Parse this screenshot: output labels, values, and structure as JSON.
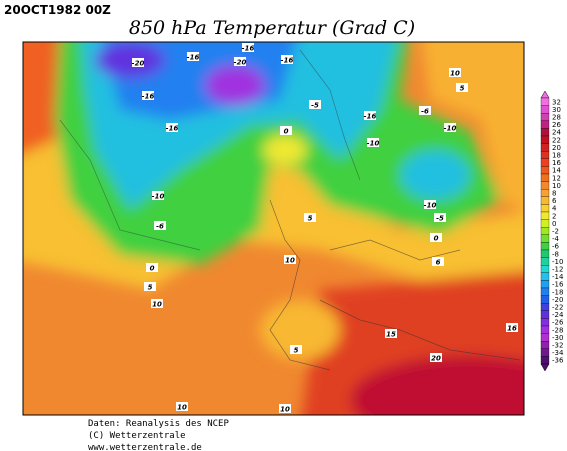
{
  "header": {
    "timestamp": "20OCT1982 00Z",
    "title": "850 hPa Temperatur (Grad C)"
  },
  "colorbar": {
    "labels": [
      32,
      30,
      28,
      26,
      24,
      22,
      20,
      18,
      16,
      14,
      12,
      10,
      8,
      6,
      4,
      2,
      0,
      -2,
      -4,
      -6,
      -8,
      -10,
      -12,
      -14,
      -16,
      -18,
      -20,
      -22,
      -24,
      -26,
      -28,
      -30,
      -32,
      -34,
      -36
    ],
    "colors": [
      "#f070e0",
      "#e050d0",
      "#d040b0",
      "#c02080",
      "#b01040",
      "#c01020",
      "#d02020",
      "#e03020",
      "#f04020",
      "#f05820",
      "#f07020",
      "#f08830",
      "#f8a030",
      "#f8b830",
      "#f8d030",
      "#f0e830",
      "#d0f020",
      "#a0e820",
      "#70e030",
      "#40d040",
      "#20c870",
      "#20d0a0",
      "#20d8d0",
      "#20c0f0",
      "#20a0f0",
      "#2080f0",
      "#2060e8",
      "#4040e0",
      "#6030e0",
      "#8030e0",
      "#a030e0",
      "#b030d0",
      "#9020b0",
      "#701890",
      "#501070"
    ]
  },
  "contour_labels": [
    -20,
    -16,
    -16,
    -20,
    -16,
    -16,
    -5,
    -16,
    -16,
    -6,
    -10,
    -10,
    -10,
    -6,
    0,
    10,
    5,
    -10,
    -5,
    0,
    5,
    10,
    6,
    0,
    5,
    10,
    16,
    15,
    5,
    20,
    10,
    10
  ],
  "footer": {
    "lines": [
      "Daten: Reanalysis des NCEP",
      "(C) Wetterzentrale",
      "www.wetterzentrale.de"
    ]
  }
}
